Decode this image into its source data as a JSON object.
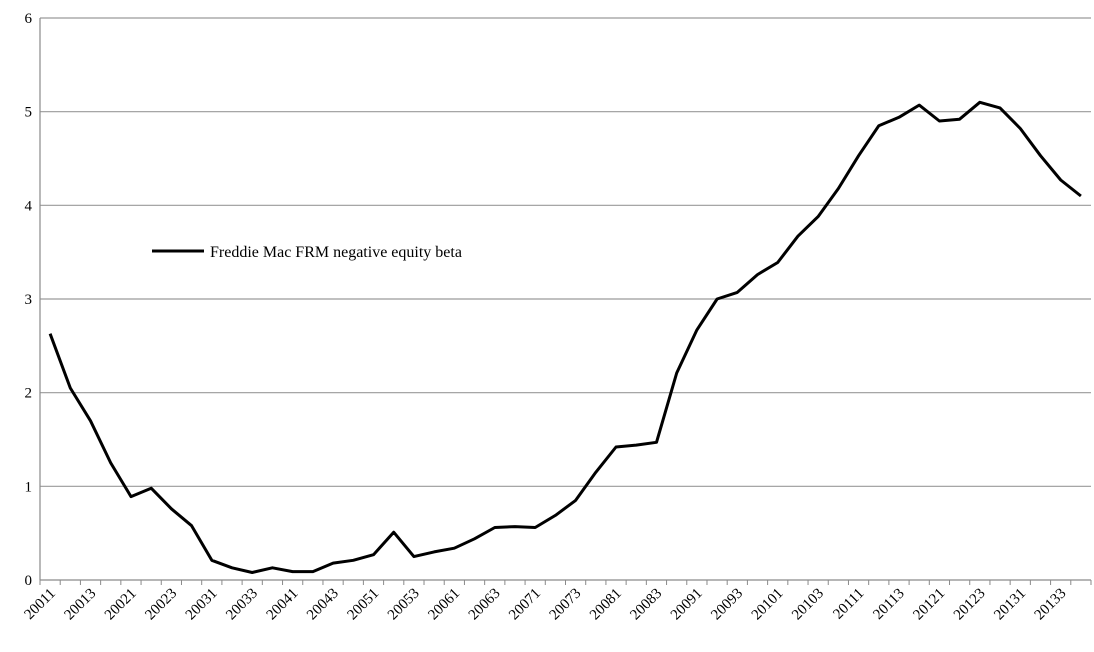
{
  "chart_data": {
    "type": "line",
    "title": "",
    "xlabel": "",
    "ylabel": "",
    "ylim": [
      0,
      6
    ],
    "yticks": [
      0,
      1,
      2,
      3,
      4,
      5,
      6
    ],
    "grid": "horizontal",
    "legend_position": "left-middle",
    "line_color": "#000000",
    "x": [
      "20011",
      "20012",
      "20013",
      "20014",
      "20021",
      "20022",
      "20023",
      "20024",
      "20031",
      "20032",
      "20033",
      "20034",
      "20041",
      "20042",
      "20043",
      "20044",
      "20051",
      "20052",
      "20053",
      "20054",
      "20061",
      "20062",
      "20063",
      "20064",
      "20071",
      "20072",
      "20073",
      "20074",
      "20081",
      "20082",
      "20083",
      "20084",
      "20091",
      "20092",
      "20093",
      "20094",
      "20101",
      "20102",
      "20103",
      "20104",
      "20111",
      "20112",
      "20113",
      "20114",
      "20121",
      "20122",
      "20123",
      "20124",
      "20131",
      "20132",
      "20133",
      "20134"
    ],
    "x_tick_labels": [
      "20011",
      "20013",
      "20021",
      "20023",
      "20031",
      "20033",
      "20041",
      "20043",
      "20051",
      "20053",
      "20061",
      "20063",
      "20071",
      "20073",
      "20081",
      "20083",
      "20091",
      "20093",
      "20101",
      "20103",
      "20111",
      "20113",
      "20121",
      "20123",
      "20131",
      "20133"
    ],
    "series": [
      {
        "name": "Freddie Mac FRM negative equity beta",
        "values": [
          2.63,
          2.05,
          1.7,
          1.25,
          0.89,
          0.98,
          0.76,
          0.58,
          0.21,
          0.13,
          0.08,
          0.13,
          0.09,
          0.09,
          0.18,
          0.21,
          0.27,
          0.51,
          0.25,
          0.3,
          0.34,
          0.44,
          0.56,
          0.57,
          0.56,
          0.69,
          0.85,
          1.15,
          1.42,
          1.44,
          1.47,
          2.21,
          2.67,
          3.0,
          3.07,
          3.26,
          3.39,
          3.67,
          3.88,
          4.18,
          4.53,
          4.85,
          4.94,
          5.07,
          4.9,
          4.92,
          5.1,
          5.04,
          4.82,
          4.53,
          4.27,
          4.1
        ]
      }
    ]
  }
}
